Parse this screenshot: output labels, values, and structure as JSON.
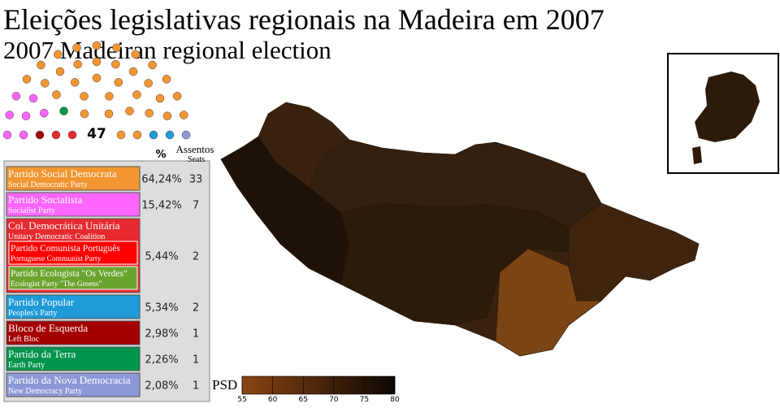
{
  "title": "Eleições legislativas regionais na Madeira em 2007",
  "subtitle": "2007 Madeiran regional election",
  "seats_total": 47,
  "table": {
    "header": {
      "percent": "%",
      "seats_pt": "Assentos",
      "seats_en": "Seats"
    },
    "rows": [
      {
        "name_pt": "Partido Social Democrata",
        "name_en": "Social Democratic Party",
        "percent": "64,24%",
        "seats": 33,
        "color": "#f39530"
      },
      {
        "name_pt": "Partido Socialista",
        "name_en": "Socialist Party",
        "percent": "15,42%",
        "seats": 7,
        "color": "#ff66ff"
      },
      {
        "name_pt": "Col. Democrática Unitária",
        "name_en": "Unitary Democratic Coalition",
        "percent": "5,44%",
        "seats": 2,
        "color": "#e62a2f",
        "members": [
          {
            "name_pt": "Partido Comunista Português",
            "name_en": "Portuguese Communist Party",
            "color": "#ff0000"
          },
          {
            "name_pt": "Partido Ecologista \"Os Verdes\"",
            "name_en": "Ecologist Party \"The Greens\"",
            "color": "#6aa42e"
          }
        ]
      },
      {
        "name_pt": "Partido Popular",
        "name_en": "Peoples's Party",
        "percent": "5,34%",
        "seats": 2,
        "color": "#1e9bd8"
      },
      {
        "name_pt": "Bloco de Esquerda",
        "name_en": "Left Bloc",
        "percent": "2,98%",
        "seats": 1,
        "color": "#a40000"
      },
      {
        "name_pt": "Partido da Terra",
        "name_en": "Earth Party",
        "percent": "2,26%",
        "seats": 1,
        "color": "#00954c"
      },
      {
        "name_pt": "Partido da Nova Democracia",
        "name_en": "New Democracy Party",
        "percent": "2,08%",
        "seats": 1,
        "color": "#8d98d8"
      }
    ]
  },
  "legend": {
    "label": "PSD",
    "ticks": [
      55,
      60,
      65,
      70,
      75,
      80
    ]
  }
}
